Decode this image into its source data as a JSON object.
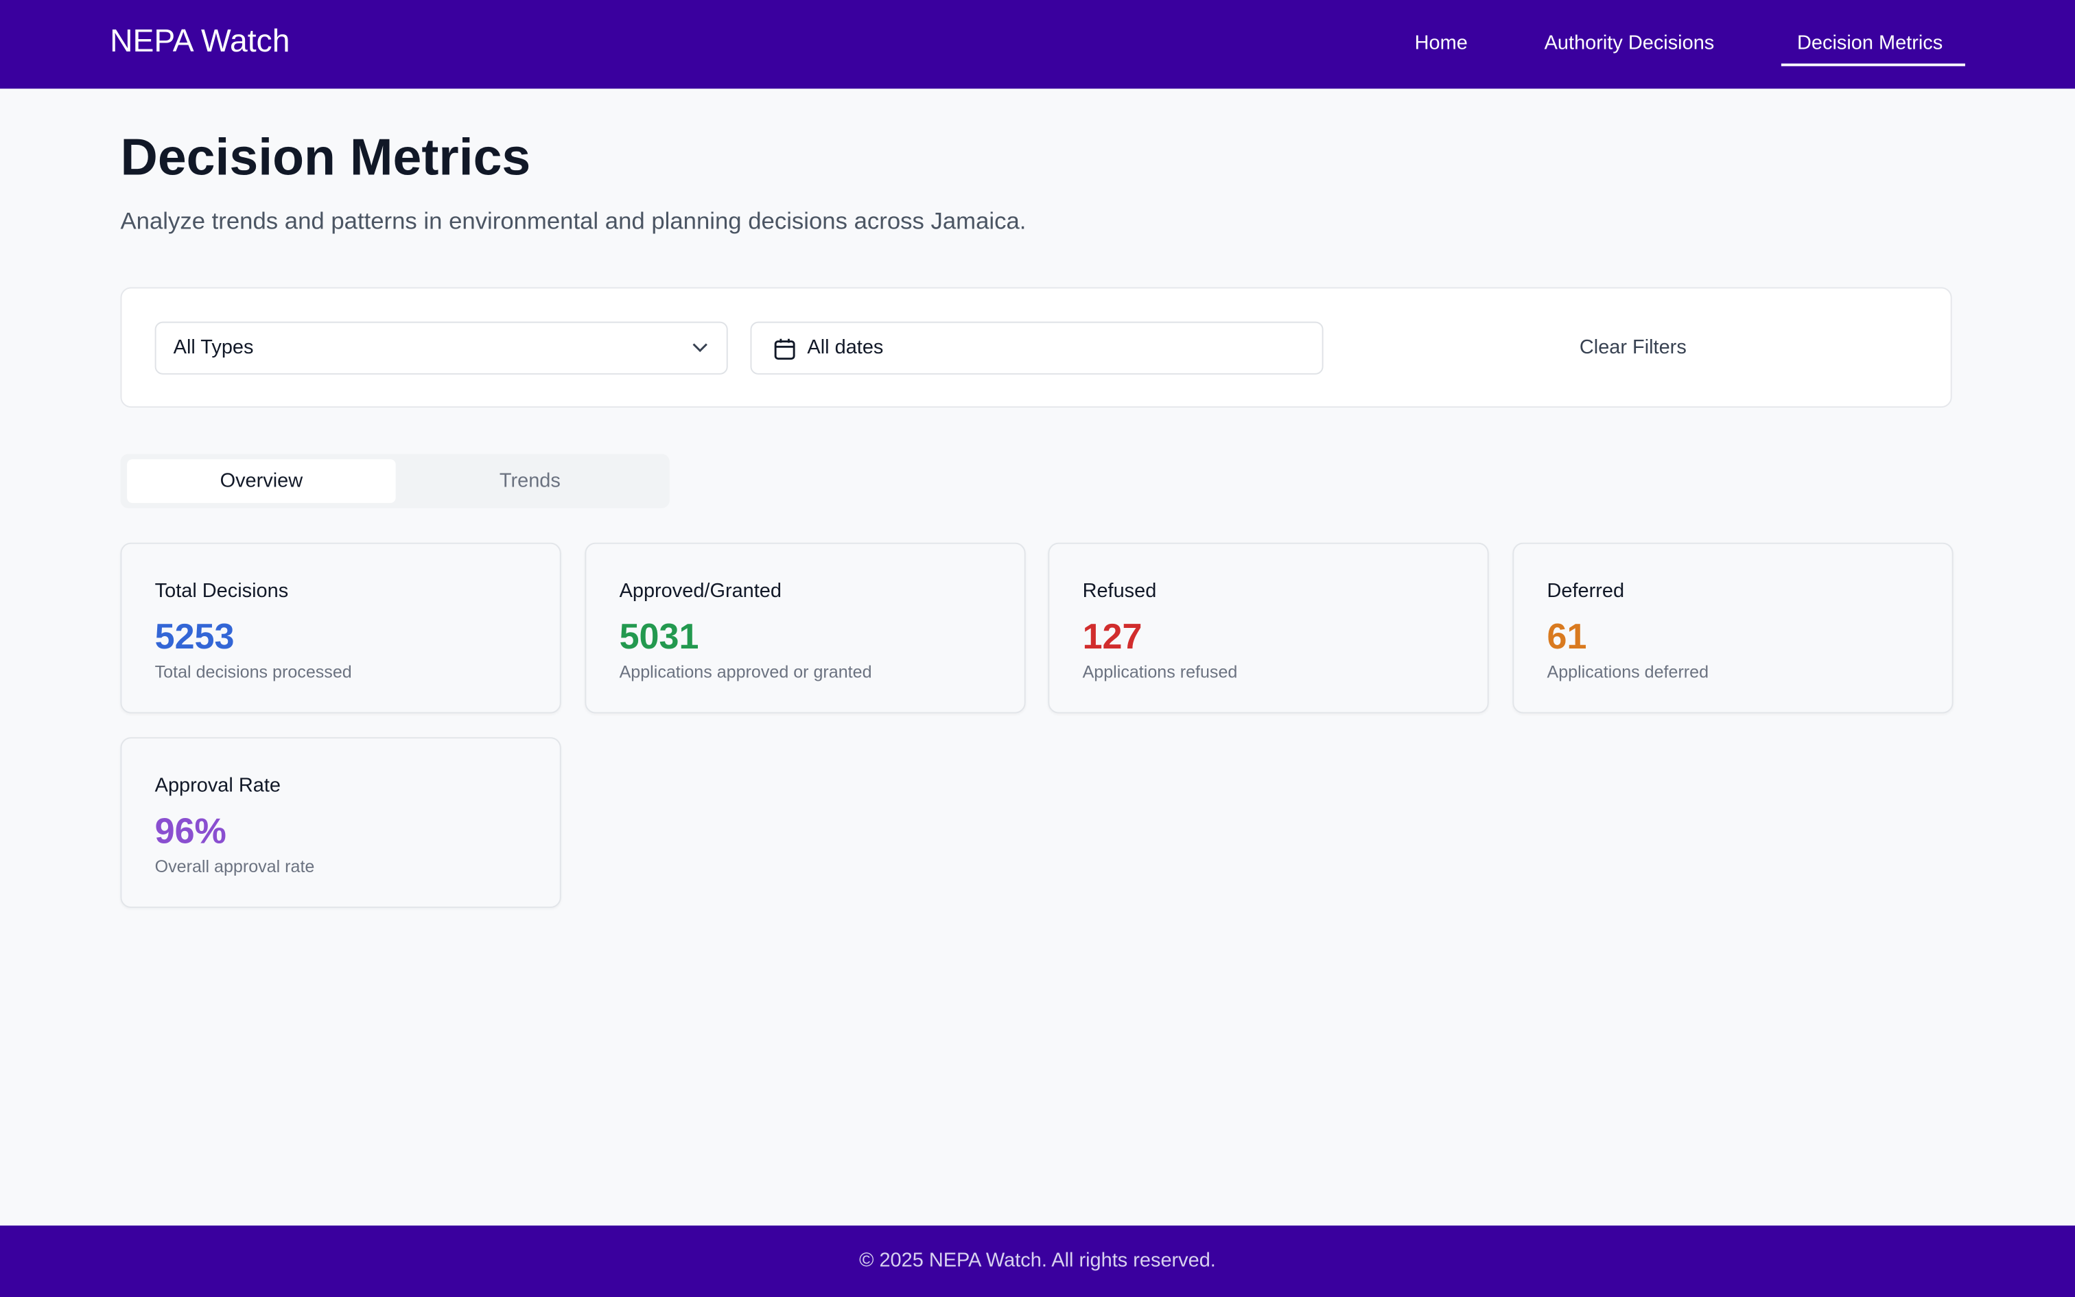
{
  "header": {
    "brand": "NEPA Watch",
    "nav": [
      "Home",
      "Authority Decisions",
      "Decision Metrics"
    ]
  },
  "page": {
    "title": "Decision Metrics",
    "subtitle": "Analyze trends and patterns in environmental and planning decisions across Jamaica."
  },
  "filters": {
    "type": "All Types",
    "dates": "All dates",
    "clear": "Clear Filters"
  },
  "tabs": [
    "Overview",
    "Trends"
  ],
  "cards": [
    {
      "label": "Total Decisions",
      "value": "5253",
      "description": "Total decisions processed",
      "color": "#3366d6"
    },
    {
      "label": "Approved/Granted",
      "value": "5031",
      "description": "Applications approved or granted",
      "color": "#23994f"
    },
    {
      "label": "Refused",
      "value": "127",
      "description": "Applications refused",
      "color": "#d12d2d"
    },
    {
      "label": "Deferred",
      "value": "61",
      "description": "Applications deferred",
      "color": "#d97a1f"
    },
    {
      "label": "Approval Rate",
      "value": "96%",
      "description": "Overall approval rate",
      "color": "#8a4fd0"
    }
  ],
  "footer": "© 2025 NEPA Watch. All rights reserved."
}
